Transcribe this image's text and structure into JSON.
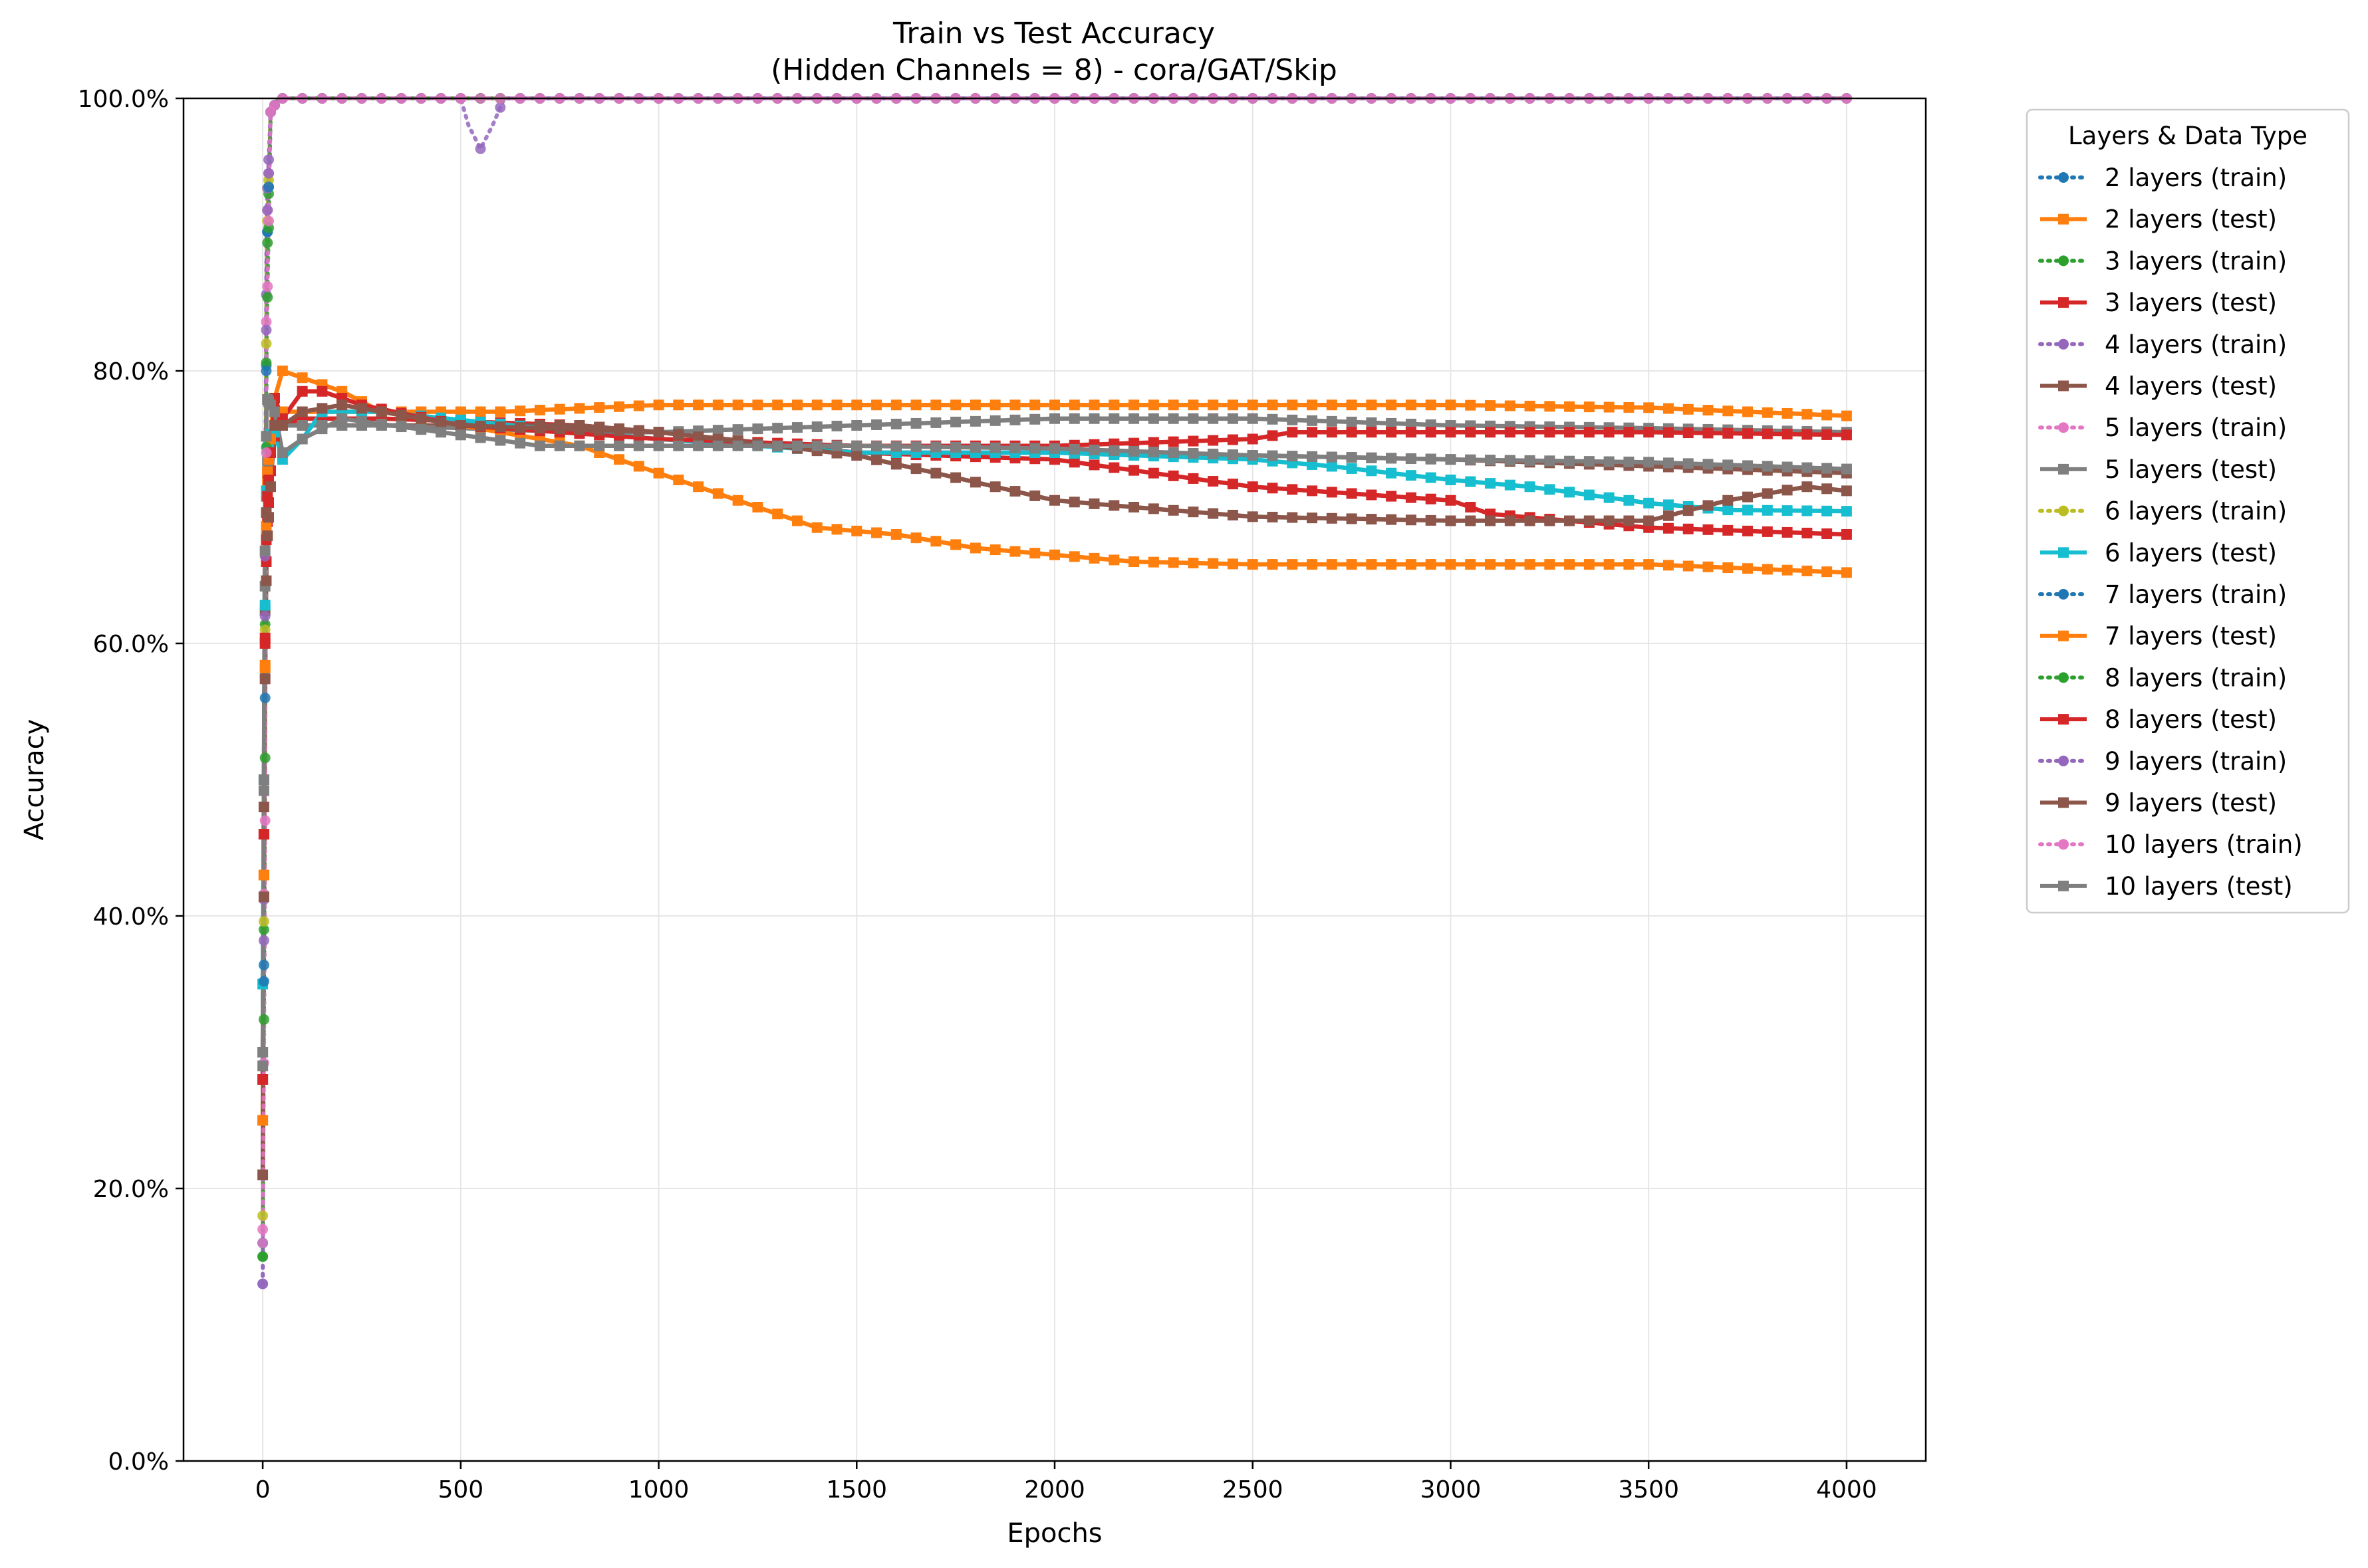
{
  "chart_data": {
    "type": "line",
    "title": "Train vs Test Accuracy",
    "subtitle": "(Hidden Channels = 8) - cora/GAT/Skip",
    "xlabel": "Epochs",
    "ylabel": "Accuracy",
    "xlim": [
      -200,
      4200
    ],
    "ylim": [
      0,
      100
    ],
    "xticks": [
      0,
      500,
      1000,
      1500,
      2000,
      2500,
      3000,
      3500,
      4000
    ],
    "xtick_labels": [
      "0",
      "500",
      "1000",
      "1500",
      "2000",
      "2500",
      "3000",
      "3500",
      "4000"
    ],
    "yticks": [
      0,
      20,
      40,
      60,
      80,
      100
    ],
    "ytick_labels": [
      "0.0%",
      "20.0%",
      "40.0%",
      "60.0%",
      "80.0%",
      "100.0%"
    ],
    "grid": true,
    "legend": {
      "title": "Layers & Data Type",
      "placement": "outside-right-top"
    },
    "series": [
      {
        "name": "2 layers (train)",
        "color": "#1f77b4",
        "style": "train",
        "points": [
          [
            0,
            16
          ],
          [
            5,
            50
          ],
          [
            10,
            88
          ],
          [
            20,
            99
          ],
          [
            40,
            100
          ],
          [
            4000,
            100
          ]
        ]
      },
      {
        "name": "2 layers (test)",
        "color": "#ff7f0e",
        "style": "test",
        "points": [
          [
            0,
            25
          ],
          [
            5,
            55
          ],
          [
            10,
            71
          ],
          [
            25,
            77
          ],
          [
            50,
            77
          ],
          [
            100,
            77
          ],
          [
            300,
            77
          ],
          [
            600,
            77
          ],
          [
            1000,
            77.5
          ],
          [
            1200,
            77.5
          ],
          [
            1500,
            77.5
          ],
          [
            2000,
            77.5
          ],
          [
            2500,
            77.5
          ],
          [
            3000,
            77.5
          ],
          [
            3500,
            77.3
          ],
          [
            4000,
            76.7
          ]
        ]
      },
      {
        "name": "3 layers (train)",
        "color": "#2ca02c",
        "style": "train",
        "points": [
          [
            0,
            15
          ],
          [
            5,
            55
          ],
          [
            10,
            87
          ],
          [
            20,
            99
          ],
          [
            40,
            100
          ],
          [
            4000,
            100
          ]
        ]
      },
      {
        "name": "3 layers (test)",
        "color": "#d62728",
        "style": "test",
        "points": [
          [
            0,
            28
          ],
          [
            5,
            58
          ],
          [
            10,
            68
          ],
          [
            25,
            75
          ],
          [
            50,
            76
          ],
          [
            100,
            76.5
          ],
          [
            300,
            76.5
          ],
          [
            800,
            76
          ],
          [
            1000,
            75.5
          ],
          [
            1500,
            74
          ],
          [
            2000,
            73.5
          ],
          [
            2500,
            71.5
          ],
          [
            3000,
            70.5
          ],
          [
            3100,
            69.5
          ],
          [
            3500,
            68.5
          ],
          [
            4000,
            68
          ]
        ]
      },
      {
        "name": "4 layers (train)",
        "color": "#9467bd",
        "style": "train",
        "points": [
          [
            0,
            13
          ],
          [
            5,
            60
          ],
          [
            10,
            92
          ],
          [
            20,
            99
          ],
          [
            40,
            100
          ],
          [
            4000,
            100
          ]
        ]
      },
      {
        "name": "4 layers (test)",
        "color": "#8c564b",
        "style": "test",
        "points": [
          [
            0,
            30
          ],
          [
            5,
            60
          ],
          [
            10,
            72
          ],
          [
            25,
            76
          ],
          [
            50,
            76
          ],
          [
            100,
            76
          ],
          [
            300,
            76
          ],
          [
            800,
            76
          ],
          [
            1000,
            75.5
          ],
          [
            1500,
            74
          ],
          [
            2000,
            74
          ],
          [
            2500,
            73.8
          ],
          [
            3000,
            73.5
          ],
          [
            3500,
            73
          ],
          [
            4000,
            72.5
          ]
        ]
      },
      {
        "name": "5 layers (train)",
        "color": "#e377c2",
        "style": "train",
        "points": [
          [
            0,
            17
          ],
          [
            5,
            58
          ],
          [
            10,
            90
          ],
          [
            20,
            99
          ],
          [
            40,
            100
          ],
          [
            4000,
            100
          ]
        ]
      },
      {
        "name": "5 layers (test)",
        "color": "#7f7f7f",
        "style": "test",
        "points": [
          [
            0,
            30
          ],
          [
            5,
            62
          ],
          [
            10,
            73
          ],
          [
            25,
            76
          ],
          [
            50,
            76
          ],
          [
            100,
            76
          ],
          [
            300,
            76
          ],
          [
            800,
            75.5
          ],
          [
            1000,
            75.5
          ],
          [
            1500,
            76
          ],
          [
            2000,
            76.5
          ],
          [
            2500,
            76.5
          ],
          [
            3000,
            76
          ],
          [
            3500,
            75.8
          ],
          [
            4000,
            75.5
          ]
        ]
      },
      {
        "name": "6 layers (train)",
        "color": "#bcbd22",
        "style": "train",
        "points": [
          [
            0,
            18
          ],
          [
            5,
            54
          ],
          [
            10,
            89
          ],
          [
            20,
            99
          ],
          [
            40,
            100
          ],
          [
            4000,
            100
          ]
        ]
      },
      {
        "name": "6 layers (test)",
        "color": "#17becf",
        "style": "test",
        "points": [
          [
            0,
            35
          ],
          [
            5,
            60
          ],
          [
            10,
            74
          ],
          [
            25,
            76
          ],
          [
            50,
            73.5
          ],
          [
            100,
            75
          ],
          [
            150,
            77
          ],
          [
            300,
            77
          ],
          [
            800,
            75.5
          ],
          [
            1000,
            75
          ],
          [
            1500,
            74
          ],
          [
            2000,
            74
          ],
          [
            2500,
            73.5
          ],
          [
            2700,
            73
          ],
          [
            3000,
            72
          ],
          [
            3200,
            71.5
          ],
          [
            3500,
            70.3
          ],
          [
            3700,
            69.8
          ],
          [
            4000,
            69.7
          ]
        ]
      },
      {
        "name": "7 layers (train)",
        "color": "#1f77b4",
        "style": "train",
        "points": [
          [
            0,
            16
          ],
          [
            5,
            48
          ],
          [
            10,
            88
          ],
          [
            20,
            99
          ],
          [
            40,
            100
          ],
          [
            4000,
            100
          ]
        ]
      },
      {
        "name": "7 layers (test)",
        "color": "#ff7f0e",
        "style": "test",
        "points": [
          [
            0,
            25
          ],
          [
            5,
            55
          ],
          [
            10,
            72
          ],
          [
            30,
            78
          ],
          [
            50,
            80
          ],
          [
            100,
            79.5
          ],
          [
            200,
            78.5
          ],
          [
            300,
            77
          ],
          [
            600,
            75.5
          ],
          [
            800,
            74.5
          ],
          [
            900,
            73.5
          ],
          [
            1000,
            72.5
          ],
          [
            1200,
            70.5
          ],
          [
            1400,
            68.5
          ],
          [
            1600,
            68
          ],
          [
            1800,
            67
          ],
          [
            2000,
            66.5
          ],
          [
            2200,
            66
          ],
          [
            2500,
            65.8
          ],
          [
            3000,
            65.8
          ],
          [
            3500,
            65.8
          ],
          [
            4000,
            65.2
          ]
        ]
      },
      {
        "name": "8 layers (train)",
        "color": "#2ca02c",
        "style": "train",
        "points": [
          [
            0,
            15
          ],
          [
            5,
            44
          ],
          [
            10,
            82
          ],
          [
            20,
            99
          ],
          [
            40,
            100
          ],
          [
            4000,
            100
          ]
        ]
      },
      {
        "name": "8 layers (test)",
        "color": "#d62728",
        "style": "test",
        "points": [
          [
            0,
            28
          ],
          [
            5,
            58
          ],
          [
            10,
            70
          ],
          [
            30,
            78
          ],
          [
            50,
            76.5
          ],
          [
            100,
            78.5
          ],
          [
            150,
            78.5
          ],
          [
            250,
            77.5
          ],
          [
            500,
            76
          ],
          [
            1000,
            75
          ],
          [
            1500,
            74.5
          ],
          [
            2000,
            74.5
          ],
          [
            2500,
            75
          ],
          [
            2600,
            75.5
          ],
          [
            3000,
            75.5
          ],
          [
            3500,
            75.5
          ],
          [
            4000,
            75.3
          ]
        ]
      },
      {
        "name": "9 layers (train)",
        "color": "#9467bd",
        "style": "train",
        "points": [
          [
            0,
            13
          ],
          [
            5,
            55
          ],
          [
            10,
            90
          ],
          [
            20,
            99
          ],
          [
            40,
            100
          ],
          [
            500,
            100
          ],
          [
            520,
            98
          ],
          [
            550,
            96.3
          ],
          [
            580,
            98
          ],
          [
            610,
            100
          ],
          [
            4000,
            100
          ]
        ]
      },
      {
        "name": "9 layers (test)",
        "color": "#8c564b",
        "style": "test",
        "points": [
          [
            0,
            21
          ],
          [
            5,
            55
          ],
          [
            10,
            67
          ],
          [
            30,
            76
          ],
          [
            50,
            76
          ],
          [
            100,
            77
          ],
          [
            200,
            77.5
          ],
          [
            300,
            77
          ],
          [
            500,
            76
          ],
          [
            1000,
            75.5
          ],
          [
            1500,
            73.8
          ],
          [
            1700,
            72.5
          ],
          [
            2000,
            70.5
          ],
          [
            2200,
            70
          ],
          [
            2500,
            69.3
          ],
          [
            3000,
            69
          ],
          [
            3500,
            69
          ],
          [
            3700,
            70.5
          ],
          [
            3900,
            71.5
          ],
          [
            4000,
            71.2
          ]
        ]
      },
      {
        "name": "10 layers (train)",
        "color": "#e377c2",
        "style": "train",
        "points": [
          [
            0,
            16
          ],
          [
            5,
            38
          ],
          [
            10,
            83
          ],
          [
            20,
            99
          ],
          [
            40,
            100
          ],
          [
            4000,
            100
          ]
        ]
      },
      {
        "name": "10 layers (test)",
        "color": "#7f7f7f",
        "style": "test",
        "points": [
          [
            0,
            29
          ],
          [
            5,
            64
          ],
          [
            10,
            78
          ],
          [
            30,
            77
          ],
          [
            50,
            74
          ],
          [
            100,
            75
          ],
          [
            200,
            76.5
          ],
          [
            500,
            75.3
          ],
          [
            700,
            74.5
          ],
          [
            1000,
            74.5
          ],
          [
            1500,
            74.5
          ],
          [
            2000,
            74.3
          ],
          [
            2500,
            73.8
          ],
          [
            3000,
            73.5
          ],
          [
            3500,
            73.3
          ],
          [
            4000,
            72.8
          ]
        ]
      }
    ]
  }
}
